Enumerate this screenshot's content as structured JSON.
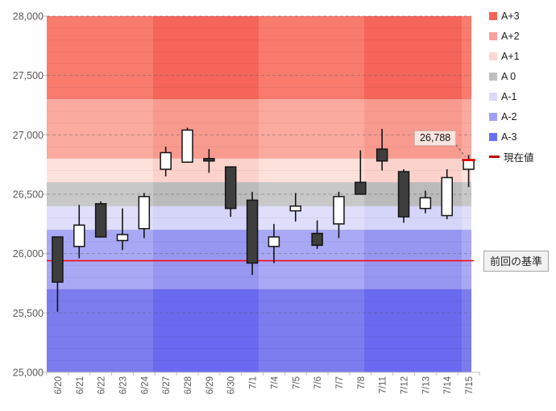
{
  "annotation": {
    "value": "26,788"
  },
  "legend": {
    "items": [
      {
        "label": "A+3",
        "color": "#F4645A",
        "type": "swatch"
      },
      {
        "label": "A+2",
        "color": "#F9A298",
        "type": "swatch"
      },
      {
        "label": "A+1",
        "color": "#FDD8D2",
        "type": "swatch"
      },
      {
        "label": "A 0",
        "color": "#BFBFBF",
        "type": "swatch"
      },
      {
        "label": "A-1",
        "color": "#DADAFB",
        "type": "swatch"
      },
      {
        "label": "A-2",
        "color": "#9F9FF5",
        "type": "swatch"
      },
      {
        "label": "A-3",
        "color": "#6D6DF2",
        "type": "swatch"
      },
      {
        "label": "現在値",
        "color": "#C00000",
        "type": "dash"
      }
    ]
  },
  "chart_data": {
    "type": "candlestick",
    "title": "",
    "legend_position": "right",
    "y_axis": {
      "min": 25000,
      "max": 28000,
      "major_step": 500,
      "minor_step": 100,
      "ticks": [
        {
          "value": 28000,
          "label": "28,000"
        },
        {
          "value": 27500,
          "label": "27,500"
        },
        {
          "value": 27000,
          "label": "27,000"
        },
        {
          "value": 26500,
          "label": "26,500"
        },
        {
          "value": 26000,
          "label": "26,000"
        },
        {
          "value": 25500,
          "label": "25,500"
        },
        {
          "value": 25000,
          "label": "25,000"
        }
      ]
    },
    "x_axis": {
      "labels": [
        "6/20",
        "6/21",
        "6/22",
        "6/23",
        "6/24",
        "6/27",
        "6/28",
        "6/29",
        "6/30",
        "7/1",
        "7/4",
        "7/5",
        "7/6",
        "7/7",
        "7/8",
        "7/11",
        "7/12",
        "7/13",
        "7/14",
        "7/15"
      ]
    },
    "zones": [
      {
        "label": "A+3",
        "from": 27300,
        "to": 28000,
        "light": "#F87B6E",
        "dark": "#F5655A"
      },
      {
        "label": "A+2",
        "from": 26800,
        "to": 27300,
        "light": "#FAAA9E",
        "dark": "#F99A8F"
      },
      {
        "label": "A+1",
        "from": 26600,
        "to": 26800,
        "light": "#FDE1DB",
        "dark": "#FCD3CC"
      },
      {
        "label": "A 0",
        "from": 26400,
        "to": 26600,
        "light": "#C8C8C9",
        "dark": "#BBBBBC"
      },
      {
        "label": "A-1",
        "from": 26200,
        "to": 26400,
        "light": "#DFDFFB",
        "dark": "#D5D5F9"
      },
      {
        "label": "A-2",
        "from": 25700,
        "to": 26200,
        "light": "#A8A8F5",
        "dark": "#9797F2"
      },
      {
        "label": "A-3",
        "from": 25000,
        "to": 25700,
        "light": "#7C7CEF",
        "dark": "#6A6AF0"
      }
    ],
    "candles": [
      {
        "date": "6/20",
        "open": 26140,
        "high": 26140,
        "low": 25510,
        "close": 25760,
        "direction": "down"
      },
      {
        "date": "6/21",
        "open": 26060,
        "high": 26410,
        "low": 25960,
        "close": 26240,
        "direction": "up"
      },
      {
        "date": "6/22",
        "open": 26420,
        "high": 26440,
        "low": 26140,
        "close": 26140,
        "direction": "down"
      },
      {
        "date": "6/23",
        "open": 26110,
        "high": 26380,
        "low": 26030,
        "close": 26160,
        "direction": "up"
      },
      {
        "date": "6/24",
        "open": 26210,
        "high": 26510,
        "low": 26130,
        "close": 26480,
        "direction": "up"
      },
      {
        "date": "6/27",
        "open": 26710,
        "high": 26900,
        "low": 26650,
        "close": 26850,
        "direction": "up"
      },
      {
        "date": "6/28",
        "open": 26770,
        "high": 27060,
        "low": 26770,
        "close": 27040,
        "direction": "up"
      },
      {
        "date": "6/29",
        "open": 26800,
        "high": 26880,
        "low": 26680,
        "close": 26780,
        "direction": "down"
      },
      {
        "date": "6/30",
        "open": 26730,
        "high": 26730,
        "low": 26310,
        "close": 26380,
        "direction": "down"
      },
      {
        "date": "7/1",
        "open": 26450,
        "high": 26520,
        "low": 25820,
        "close": 25920,
        "direction": "down"
      },
      {
        "date": "7/4",
        "open": 26060,
        "high": 26250,
        "low": 25920,
        "close": 26140,
        "direction": "up"
      },
      {
        "date": "7/5",
        "open": 26360,
        "high": 26510,
        "low": 26270,
        "close": 26400,
        "direction": "up"
      },
      {
        "date": "7/6",
        "open": 26170,
        "high": 26280,
        "low": 26040,
        "close": 26070,
        "direction": "down"
      },
      {
        "date": "7/7",
        "open": 26250,
        "high": 26520,
        "low": 26130,
        "close": 26480,
        "direction": "up"
      },
      {
        "date": "7/8",
        "open": 26600,
        "high": 26870,
        "low": 26500,
        "close": 26500,
        "direction": "down"
      },
      {
        "date": "7/11",
        "open": 26880,
        "high": 27050,
        "low": 26700,
        "close": 26780,
        "direction": "down"
      },
      {
        "date": "7/12",
        "open": 26690,
        "high": 26710,
        "low": 26260,
        "close": 26310,
        "direction": "down"
      },
      {
        "date": "7/13",
        "open": 26380,
        "high": 26530,
        "low": 26340,
        "close": 26470,
        "direction": "up"
      },
      {
        "date": "7/14",
        "open": 26320,
        "high": 26710,
        "low": 26290,
        "close": 26640,
        "direction": "up"
      },
      {
        "date": "7/15",
        "open": 26710,
        "high": 26830,
        "low": 26560,
        "close": 26788,
        "direction": "up",
        "current": true
      }
    ],
    "current": {
      "label": "現在値",
      "value": 26788,
      "display": "26,788",
      "color": "#E00000"
    },
    "baseline": {
      "label": "前回の基準",
      "value": 25940,
      "color": "#FF0000"
    },
    "candle_colors": {
      "up_fill": "#FFFFFF",
      "down_fill": "#3E3E3E",
      "stroke": "#141414"
    }
  },
  "baseline": {
    "label": "前回の基準"
  }
}
